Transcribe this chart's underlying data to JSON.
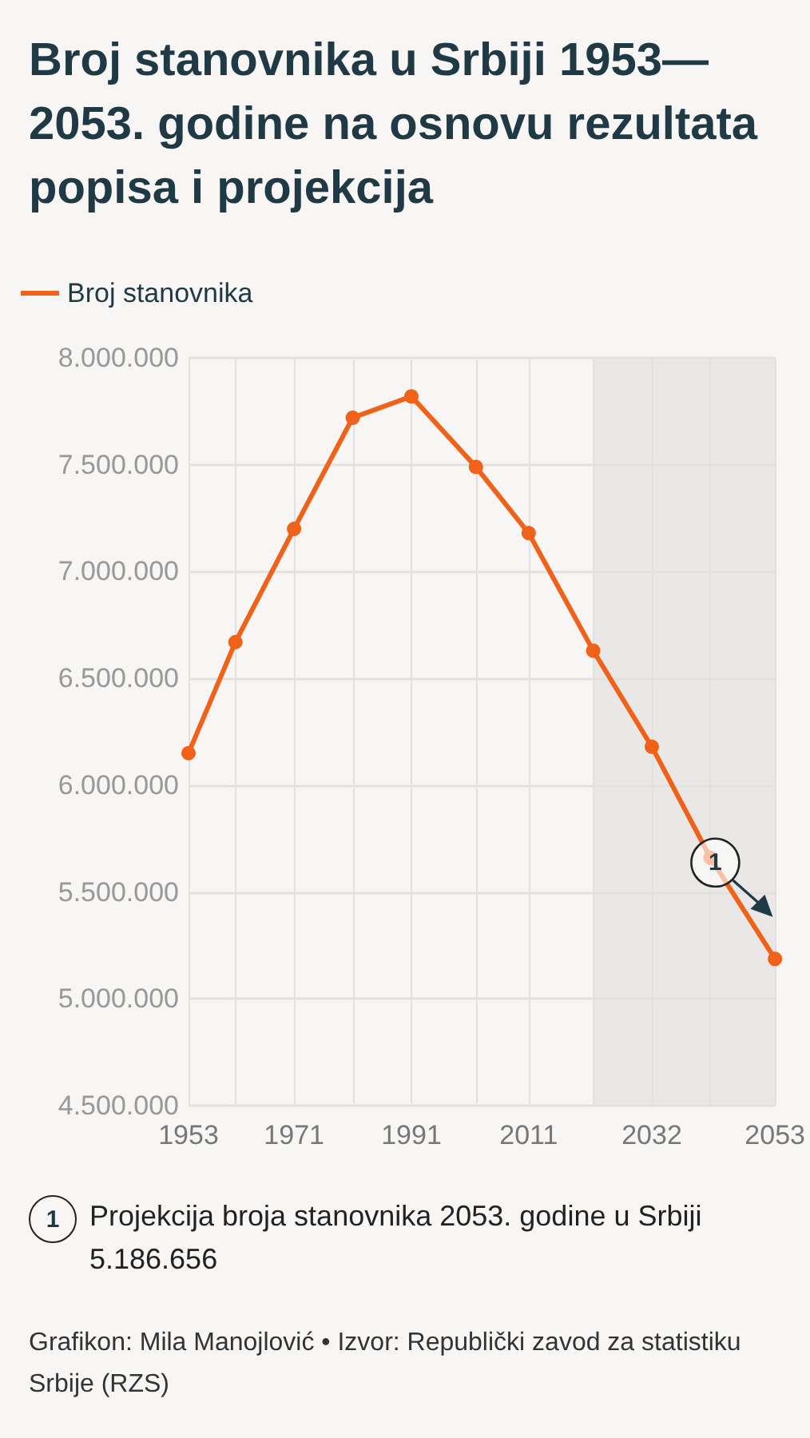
{
  "chart_data": {
    "type": "line",
    "title": "Broj stanovnika u Srbiji 1953—2053. godine na osnovu rezultata popisa i projekcija",
    "x": [
      1953,
      1961,
      1971,
      1981,
      1991,
      2002,
      2011,
      2022,
      2032,
      2042,
      2053
    ],
    "series": [
      {
        "name": "Broj stanovnika",
        "color": "#f0611a",
        "values": [
          6150000,
          6670000,
          7200000,
          7720000,
          7820000,
          7490000,
          7180000,
          6630000,
          6180000,
          5660000,
          5186656
        ]
      }
    ],
    "xlim": [
      1953,
      2053
    ],
    "xticks": [
      1953,
      {
        "value": 1961,
        "label": null
      },
      1971,
      {
        "value": 1981,
        "label": null
      },
      1991,
      {
        "value": 2002,
        "label": null
      },
      2011,
      {
        "value": 2022,
        "label": null
      },
      2032,
      {
        "value": 2042,
        "label": null
      },
      2053
    ],
    "ylim": [
      4500000,
      8000000
    ],
    "yticks": [
      {
        "value": 4500000,
        "label": "4.500.000"
      },
      {
        "value": 5000000,
        "label": "5.000.000"
      },
      {
        "value": 5500000,
        "label": "5.500.000"
      },
      {
        "value": 6000000,
        "label": "6.000.000"
      },
      {
        "value": 6500000,
        "label": "6.500.000"
      },
      {
        "value": 7000000,
        "label": "7.000.000"
      },
      {
        "value": 7500000,
        "label": "7.500.000"
      },
      {
        "value": 8000000,
        "label": "8.000.000"
      }
    ],
    "bands": [
      {
        "axis": "x",
        "from": 2022,
        "to": 2053,
        "color": "#e9e8e6"
      }
    ],
    "grid": true,
    "legend": "top left",
    "marker": "circle",
    "line_style": "solid",
    "annotations": [
      {
        "text": "1",
        "x": 2042,
        "y": 5660000
      },
      "Projekcija broja stanovnika 2053. godine u Srbiji 5.186.656",
      "Grafikon: Mila Manojlović • Izvor: Republički zavod za statistiku Srbije (RZS)"
    ]
  }
}
